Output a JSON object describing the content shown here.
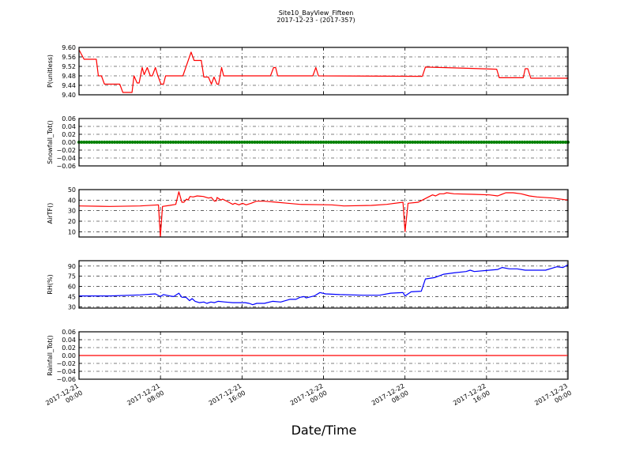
{
  "chart_data": {
    "type": "line",
    "title": "Site10_BayView_Fifteen",
    "subtitle": "2017-12-23 - (2017-357)",
    "xlabel": "Date/Time",
    "x_unit": "hours since 2017-12-21 00:00",
    "xlim": [
      0,
      48
    ],
    "x_ticks": [
      0,
      8,
      16,
      24,
      32,
      40,
      48
    ],
    "x_tick_labels": [
      [
        "2017-12-21",
        "00:00"
      ],
      [
        "2017-12-21",
        "08:00"
      ],
      [
        "2017-12-21",
        "16:00"
      ],
      [
        "2017-12-22",
        "00:00"
      ],
      [
        "2017-12-22",
        "08:00"
      ],
      [
        "2017-12-22",
        "16:00"
      ],
      [
        "2017-12-23",
        "00:00"
      ]
    ],
    "grid": true,
    "panels": [
      {
        "ylabel": "P(unitless)",
        "color": "#ff0000",
        "style": "line",
        "ylim": [
          9.4,
          9.6
        ],
        "yticks": [
          9.4,
          9.44,
          9.48,
          9.52,
          9.56,
          9.6
        ],
        "decimals": 2,
        "points": [
          [
            0,
            9.59
          ],
          [
            0.5,
            9.55
          ],
          [
            1.7,
            9.55
          ],
          [
            1.9,
            9.48
          ],
          [
            2.2,
            9.48
          ],
          [
            2.5,
            9.445
          ],
          [
            4.0,
            9.445
          ],
          [
            4.3,
            9.41
          ],
          [
            5.2,
            9.41
          ],
          [
            5.4,
            9.48
          ],
          [
            5.7,
            9.45
          ],
          [
            5.9,
            9.45
          ],
          [
            6.2,
            9.515
          ],
          [
            6.4,
            9.485
          ],
          [
            6.7,
            9.515
          ],
          [
            7.0,
            9.48
          ],
          [
            7.2,
            9.48
          ],
          [
            7.5,
            9.515
          ],
          [
            7.75,
            9.48
          ],
          [
            8.05,
            9.445
          ],
          [
            8.3,
            9.445
          ],
          [
            8.5,
            9.48
          ],
          [
            10.2,
            9.48
          ],
          [
            11.0,
            9.58
          ],
          [
            11.3,
            9.545
          ],
          [
            12.0,
            9.545
          ],
          [
            12.25,
            9.475
          ],
          [
            12.7,
            9.475
          ],
          [
            13.0,
            9.445
          ],
          [
            13.25,
            9.475
          ],
          [
            13.55,
            9.445
          ],
          [
            13.7,
            9.445
          ],
          [
            14.0,
            9.515
          ],
          [
            14.2,
            9.48
          ],
          [
            18.8,
            9.48
          ],
          [
            19.1,
            9.515
          ],
          [
            19.3,
            9.515
          ],
          [
            19.5,
            9.48
          ],
          [
            22.95,
            9.48
          ],
          [
            23.25,
            9.515
          ],
          [
            23.5,
            9.48
          ],
          [
            33.7,
            9.478
          ],
          [
            34.0,
            9.517
          ],
          [
            38,
            9.512
          ],
          [
            41.0,
            9.508
          ],
          [
            41.25,
            9.472
          ],
          [
            43.6,
            9.472
          ],
          [
            43.8,
            9.51
          ],
          [
            44.05,
            9.51
          ],
          [
            44.35,
            9.47
          ],
          [
            48,
            9.47
          ]
        ]
      },
      {
        "ylabel": "Snowfall_Tot()",
        "color": "#008000",
        "style": "markers",
        "ylim": [
          -0.06,
          0.06
        ],
        "yticks": [
          -0.06,
          -0.04,
          -0.02,
          0.0,
          0.02,
          0.04,
          0.06
        ],
        "decimals": 2,
        "constant_value": 0,
        "sample_interval_hours": 0.25
      },
      {
        "ylabel": "AirTF()",
        "color": "#ff0000",
        "style": "line",
        "ylim": [
          5,
          50
        ],
        "yticks": [
          10,
          20,
          30,
          40,
          50
        ],
        "decimals": 0,
        "points": [
          [
            0,
            34.5
          ],
          [
            3,
            34
          ],
          [
            6,
            34.5
          ],
          [
            7.8,
            35.5
          ],
          [
            7.99,
            5
          ],
          [
            8.2,
            34
          ],
          [
            8.9,
            35
          ],
          [
            9.5,
            36
          ],
          [
            9.8,
            48
          ],
          [
            10.1,
            38
          ],
          [
            10.3,
            38
          ],
          [
            10.55,
            41
          ],
          [
            10.7,
            40
          ],
          [
            10.9,
            43.5
          ],
          [
            11.2,
            43
          ],
          [
            11.6,
            44
          ],
          [
            12.2,
            43.5
          ],
          [
            12.7,
            42
          ],
          [
            13.0,
            42.5
          ],
          [
            13.3,
            39
          ],
          [
            13.5,
            39.5
          ],
          [
            13.55,
            42.5
          ],
          [
            13.95,
            40
          ],
          [
            14.1,
            41
          ],
          [
            14.7,
            38
          ],
          [
            15.1,
            36
          ],
          [
            15.3,
            37
          ],
          [
            15.7,
            35.5
          ],
          [
            16.05,
            37
          ],
          [
            16.4,
            35.5
          ],
          [
            16.9,
            37
          ],
          [
            17.4,
            39
          ],
          [
            18.2,
            39
          ],
          [
            19.4,
            38
          ],
          [
            20.5,
            37
          ],
          [
            21.7,
            36
          ],
          [
            24.8,
            35.5
          ],
          [
            26,
            34.5
          ],
          [
            28.7,
            35
          ],
          [
            30.2,
            36
          ],
          [
            31.8,
            38
          ],
          [
            32.0,
            10
          ],
          [
            32.3,
            37
          ],
          [
            33.3,
            38
          ],
          [
            33.7,
            40
          ],
          [
            34.3,
            43
          ],
          [
            34.7,
            45
          ],
          [
            35.0,
            44
          ],
          [
            35.4,
            46
          ],
          [
            35.8,
            46
          ],
          [
            36.1,
            47
          ],
          [
            36.8,
            46
          ],
          [
            38.8,
            45.5
          ],
          [
            40.3,
            45
          ],
          [
            41.1,
            44
          ],
          [
            41.9,
            47
          ],
          [
            42.6,
            47
          ],
          [
            43.4,
            46
          ],
          [
            44.2,
            44
          ],
          [
            44.96,
            43
          ],
          [
            46.5,
            42
          ],
          [
            48,
            40
          ]
        ]
      },
      {
        "ylabel": "RH(%)",
        "color": "#0000ff",
        "style": "line",
        "ylim": [
          28,
          98
        ],
        "yticks": [
          30,
          45,
          60,
          75,
          90
        ],
        "decimals": 0,
        "points": [
          [
            0,
            46
          ],
          [
            3,
            46
          ],
          [
            6,
            47.5
          ],
          [
            7.5,
            49
          ],
          [
            7.99,
            45
          ],
          [
            8.3,
            48
          ],
          [
            8.9,
            46
          ],
          [
            9.3,
            45
          ],
          [
            9.8,
            50
          ],
          [
            10.1,
            44
          ],
          [
            10.5,
            44
          ],
          [
            10.85,
            39
          ],
          [
            11.1,
            42
          ],
          [
            11.4,
            38
          ],
          [
            11.8,
            36
          ],
          [
            12.25,
            37
          ],
          [
            12.55,
            35
          ],
          [
            12.95,
            37
          ],
          [
            13.3,
            36
          ],
          [
            13.65,
            38
          ],
          [
            14.35,
            37
          ],
          [
            15.1,
            36
          ],
          [
            16.3,
            36
          ],
          [
            16.7,
            35
          ],
          [
            17.05,
            33
          ],
          [
            17.45,
            35
          ],
          [
            18.2,
            35
          ],
          [
            19.0,
            38
          ],
          [
            19.8,
            37
          ],
          [
            20.7,
            41
          ],
          [
            21.3,
            41
          ],
          [
            21.7,
            44
          ],
          [
            22.1,
            45
          ],
          [
            22.3,
            43
          ],
          [
            23.1,
            46
          ],
          [
            23.65,
            51
          ],
          [
            24.2,
            49
          ],
          [
            25.6,
            48
          ],
          [
            27.9,
            47
          ],
          [
            29.5,
            47
          ],
          [
            30.6,
            50
          ],
          [
            31.8,
            51
          ],
          [
            32.0,
            46
          ],
          [
            32.6,
            52
          ],
          [
            33.6,
            53
          ],
          [
            34.0,
            71
          ],
          [
            34.9,
            73
          ],
          [
            35.8,
            78
          ],
          [
            36.8,
            80
          ],
          [
            38.0,
            82
          ],
          [
            38.4,
            84
          ],
          [
            38.8,
            82
          ],
          [
            40.3,
            84
          ],
          [
            41.1,
            85
          ],
          [
            41.55,
            88
          ],
          [
            42.25,
            86
          ],
          [
            43.0,
            86
          ],
          [
            43.8,
            84
          ],
          [
            45.8,
            84
          ],
          [
            46.9,
            89
          ],
          [
            47.5,
            88
          ],
          [
            48,
            92
          ]
        ]
      },
      {
        "ylabel": "Rainfall_Tot()",
        "color": "#ff0000",
        "style": "line",
        "ylim": [
          -0.06,
          0.06
        ],
        "yticks": [
          -0.06,
          -0.04,
          -0.02,
          0.0,
          0.02,
          0.04,
          0.06
        ],
        "decimals": 2,
        "points": [
          [
            0,
            0
          ],
          [
            48,
            0
          ]
        ]
      }
    ]
  }
}
